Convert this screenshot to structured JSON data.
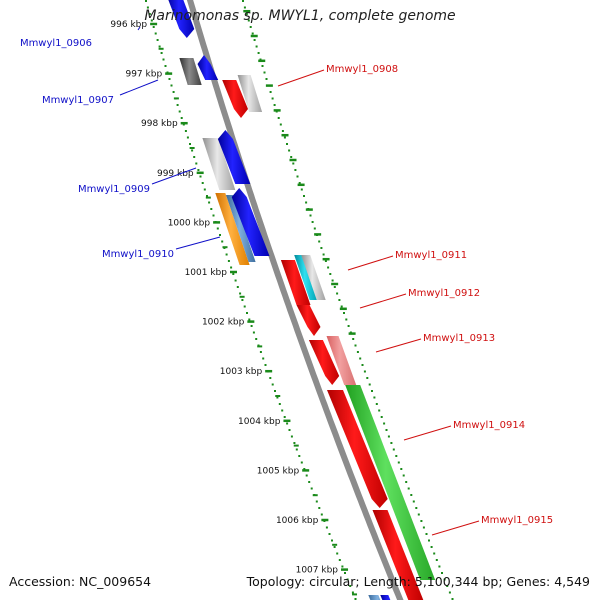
{
  "title": "Marinomonas sp. MWYL1, complete genome",
  "footer": {
    "accession": "Accession: NC_009654",
    "summary": "Topology: circular; Length: 5,100,344 bp; Genes: 4,549"
  },
  "colors": {
    "backbone": "#8c8c8c",
    "dots": "#1a8a1a",
    "left_label": "#1010c8",
    "right_label": "#d01010"
  },
  "ticks": [
    "996 kbp",
    "997 kbp",
    "998 kbp",
    "999 kbp",
    "1000 kbp",
    "1001 kbp",
    "1002 kbp",
    "1003 kbp",
    "1004 kbp",
    "1005 kbp",
    "1006 kbp",
    "1007 kbp"
  ],
  "labels_left": [
    "Mmwyl1_0906",
    "Mmwyl1_0907",
    "Mmwyl1_0909",
    "Mmwyl1_0910"
  ],
  "labels_right": [
    "Mmwyl1_0908",
    "Mmwyl1_0911",
    "Mmwyl1_0912",
    "Mmwyl1_0913",
    "Mmwyl1_0914",
    "Mmwyl1_0915"
  ]
}
